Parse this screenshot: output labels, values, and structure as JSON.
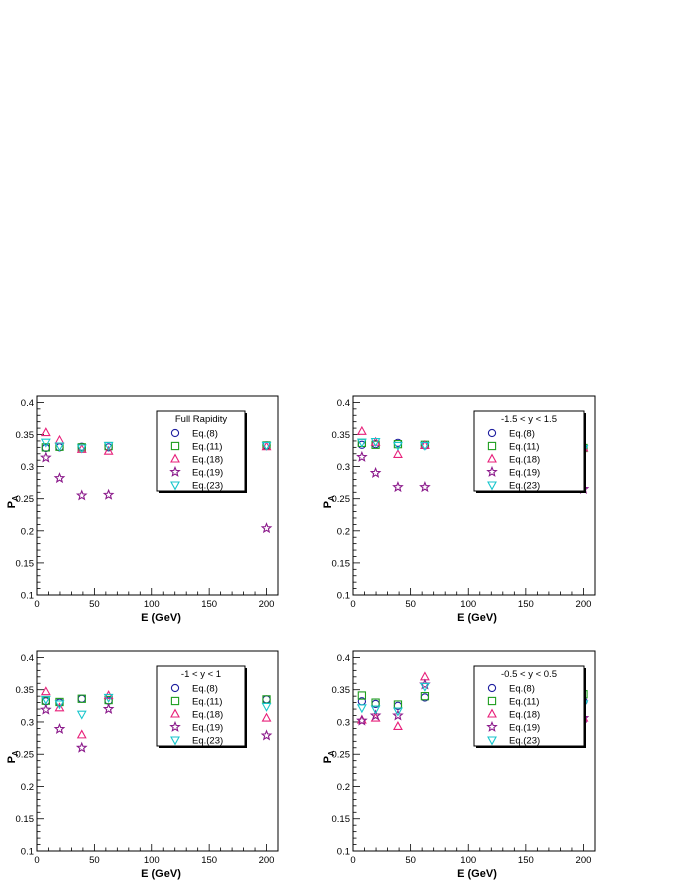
{
  "colors": {
    "Eq.(8)": "#1f1f9f",
    "Eq.(11)": "#1e9e1e",
    "Eq.(18)": "#e8207a",
    "Eq.(19)": "#8b1a8b",
    "Eq.(23)": "#19c6cc"
  },
  "chart_data": [
    {
      "type": "scatter",
      "title": "",
      "legend_title": "Full Rapidity",
      "legend_placement": "top-right",
      "xlabel": "E (GeV)",
      "ylabel": "P_Λ",
      "xlim": [
        0,
        210
      ],
      "ylim": [
        0.1,
        0.41
      ],
      "x_ticks": [
        "0",
        "50",
        "100",
        "150",
        "200"
      ],
      "y_ticks": [
        "0.1",
        "0.15",
        "0.2",
        "0.25",
        "0.3",
        "0.35",
        "0.4"
      ],
      "x": [
        7.7,
        19.6,
        39,
        62.4,
        200
      ],
      "series": [
        {
          "name": "Eq.(8)",
          "marker": "circle",
          "values": [
            0.329,
            0.33,
            0.331,
            0.33,
            0.333
          ]
        },
        {
          "name": "Eq.(11)",
          "marker": "square",
          "values": [
            0.33,
            0.331,
            0.33,
            0.332,
            0.333
          ]
        },
        {
          "name": "Eq.(18)",
          "marker": "triangle",
          "values": [
            0.353,
            0.341,
            0.327,
            0.324,
            0.331
          ]
        },
        {
          "name": "Eq.(19)",
          "marker": "star",
          "values": [
            0.314,
            0.282,
            0.255,
            0.256,
            0.204
          ]
        },
        {
          "name": "Eq.(23)",
          "marker": "tridown",
          "values": [
            0.338,
            0.332,
            0.329,
            0.333,
            0.333
          ]
        }
      ]
    },
    {
      "type": "scatter",
      "title": "",
      "legend_title": "-1.5 < y < 1.5",
      "legend_placement": "top-right",
      "xlabel": "E (GeV)",
      "ylabel": "P_Λ",
      "xlim": [
        0,
        210
      ],
      "ylim": [
        0.1,
        0.41
      ],
      "x_ticks": [
        "0",
        "50",
        "100",
        "150",
        "200"
      ],
      "y_ticks": [
        "0.1",
        "0.15",
        "0.2",
        "0.25",
        "0.3",
        "0.35",
        "0.4"
      ],
      "x": [
        7.7,
        19.6,
        39,
        62.4,
        200
      ],
      "series": [
        {
          "name": "Eq.(8)",
          "marker": "circle",
          "values": [
            0.334,
            0.335,
            0.337,
            0.333,
            0.328
          ]
        },
        {
          "name": "Eq.(11)",
          "marker": "square",
          "values": [
            0.337,
            0.334,
            0.335,
            0.334,
            0.329
          ]
        },
        {
          "name": "Eq.(18)",
          "marker": "triangle",
          "values": [
            0.355,
            0.338,
            0.319,
            0.333,
            0.329
          ]
        },
        {
          "name": "Eq.(19)",
          "marker": "star",
          "values": [
            0.315,
            0.29,
            0.268,
            0.268,
            0.265
          ]
        },
        {
          "name": "Eq.(23)",
          "marker": "tridown",
          "values": [
            0.338,
            0.339,
            0.333,
            0.333,
            0.328
          ]
        }
      ]
    },
    {
      "type": "scatter",
      "title": "",
      "legend_title": "-1 < y < 1",
      "legend_placement": "top-right",
      "xlabel": "E (GeV)",
      "ylabel": "P_Λ",
      "xlim": [
        0,
        210
      ],
      "ylim": [
        0.1,
        0.41
      ],
      "x_ticks": [
        "0",
        "50",
        "100",
        "150",
        "200"
      ],
      "y_ticks": [
        "0.1",
        "0.15",
        "0.2",
        "0.25",
        "0.3",
        "0.35",
        "0.4"
      ],
      "x": [
        7.7,
        19.6,
        39,
        62.4,
        200
      ],
      "series": [
        {
          "name": "Eq.(8)",
          "marker": "circle",
          "values": [
            0.332,
            0.33,
            0.336,
            0.333,
            0.335
          ]
        },
        {
          "name": "Eq.(11)",
          "marker": "square",
          "values": [
            0.333,
            0.331,
            0.336,
            0.334,
            0.335
          ]
        },
        {
          "name": "Eq.(18)",
          "marker": "triangle",
          "values": [
            0.347,
            0.322,
            0.28,
            0.341,
            0.306
          ]
        },
        {
          "name": "Eq.(19)",
          "marker": "star",
          "values": [
            0.319,
            0.289,
            0.26,
            0.32,
            0.279
          ]
        },
        {
          "name": "Eq.(23)",
          "marker": "tridown",
          "values": [
            0.335,
            0.328,
            0.312,
            0.338,
            0.324
          ]
        }
      ]
    },
    {
      "type": "scatter",
      "title": "",
      "legend_title": "-0.5 < y < 0.5",
      "legend_placement": "top-right",
      "xlabel": "E (GeV)",
      "ylabel": "P_Λ",
      "xlim": [
        0,
        210
      ],
      "ylim": [
        0.1,
        0.41
      ],
      "x_ticks": [
        "0",
        "50",
        "100",
        "150",
        "200"
      ],
      "y_ticks": [
        "0.1",
        "0.15",
        "0.2",
        "0.25",
        "0.3",
        "0.35",
        "0.4"
      ],
      "x": [
        7.7,
        19.6,
        39,
        62.4,
        200
      ],
      "series": [
        {
          "name": "Eq.(8)",
          "marker": "circle",
          "values": [
            0.332,
            0.328,
            0.325,
            0.338,
            0.332
          ]
        },
        {
          "name": "Eq.(11)",
          "marker": "square",
          "values": [
            0.341,
            0.33,
            0.327,
            0.34,
            0.343
          ]
        },
        {
          "name": "Eq.(18)",
          "marker": "triangle",
          "values": [
            0.303,
            0.306,
            0.293,
            0.37,
            0.306
          ]
        },
        {
          "name": "Eq.(19)",
          "marker": "star",
          "values": [
            0.302,
            0.31,
            0.31,
            0.358,
            0.306
          ]
        },
        {
          "name": "Eq.(23)",
          "marker": "tridown",
          "values": [
            0.322,
            0.32,
            0.317,
            0.355,
            0.328
          ]
        }
      ]
    }
  ]
}
